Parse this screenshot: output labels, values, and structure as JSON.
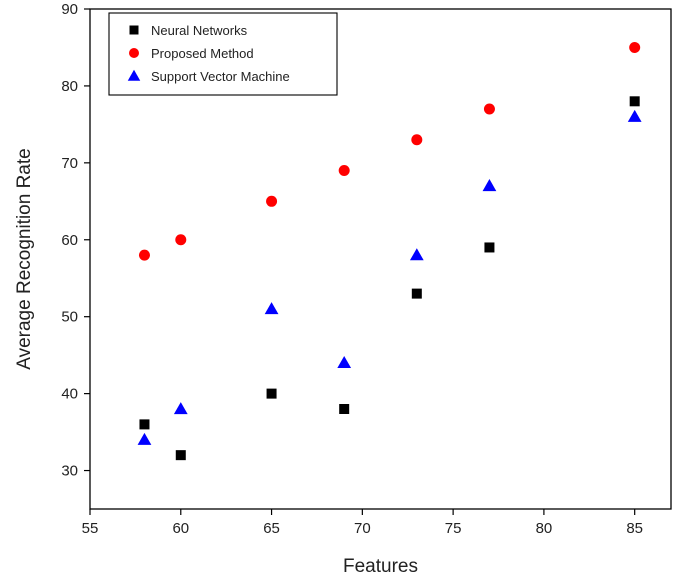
{
  "chart_data": {
    "type": "scatter",
    "xlabel": "Features",
    "ylabel": "Average Recognition Rate",
    "xlim": [
      55,
      87
    ],
    "ylim": [
      25,
      90
    ],
    "xticks": [
      55,
      60,
      65,
      70,
      75,
      80,
      85
    ],
    "yticks": [
      30,
      40,
      50,
      60,
      70,
      80,
      90
    ],
    "grid": false,
    "legend_position": "top-left",
    "series": [
      {
        "name": "Neural Networks",
        "marker": "square",
        "color": "#000000",
        "x": [
          58,
          60,
          65,
          69,
          73,
          77,
          85
        ],
        "y": [
          36,
          32,
          40,
          38,
          53,
          59,
          78
        ]
      },
      {
        "name": "Proposed Method",
        "marker": "circle",
        "color": "#ff0000",
        "x": [
          58,
          60,
          65,
          69,
          73,
          77,
          85
        ],
        "y": [
          58,
          60,
          65,
          69,
          73,
          77,
          85
        ]
      },
      {
        "name": "Support Vector Machine",
        "marker": "triangle",
        "color": "#0000ff",
        "x": [
          58,
          60,
          65,
          69,
          73,
          77,
          85
        ],
        "y": [
          34,
          38,
          51,
          44,
          58,
          67,
          76
        ]
      }
    ]
  }
}
